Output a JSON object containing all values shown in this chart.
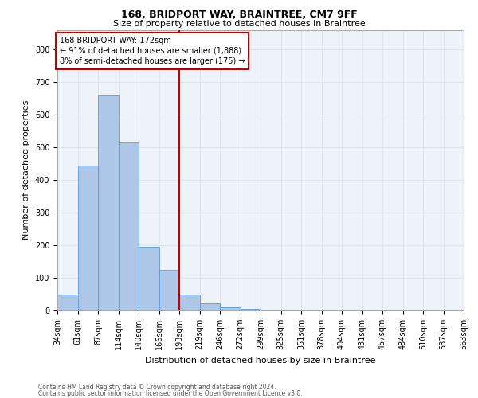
{
  "title1": "168, BRIDPORT WAY, BRAINTREE, CM7 9FF",
  "title2": "Size of property relative to detached houses in Braintree",
  "xlabel": "Distribution of detached houses by size in Braintree",
  "ylabel": "Number of detached properties",
  "footer1": "Contains HM Land Registry data © Crown copyright and database right 2024.",
  "footer2": "Contains public sector information licensed under the Open Government Licence v3.0.",
  "bins": [
    "34sqm",
    "61sqm",
    "87sqm",
    "114sqm",
    "140sqm",
    "166sqm",
    "193sqm",
    "219sqm",
    "246sqm",
    "272sqm",
    "299sqm",
    "325sqm",
    "351sqm",
    "378sqm",
    "404sqm",
    "431sqm",
    "457sqm",
    "484sqm",
    "510sqm",
    "537sqm",
    "563sqm"
  ],
  "bar_values": [
    50,
    445,
    660,
    515,
    195,
    125,
    50,
    22,
    10,
    5,
    0,
    0,
    0,
    0,
    0,
    0,
    0,
    0,
    0,
    0
  ],
  "bar_color": "#aec6e8",
  "bar_edge_color": "#5b9bd5",
  "grid_color": "#dce6f1",
  "vline_x": 6,
  "vline_color": "#c00000",
  "annotation_text": "168 BRIDPORT WAY: 172sqm\n← 91% of detached houses are smaller (1,888)\n8% of semi-detached houses are larger (175) →",
  "annotation_box_color": "#c00000",
  "ylim": [
    0,
    860
  ],
  "yticks": [
    0,
    100,
    200,
    300,
    400,
    500,
    600,
    700,
    800
  ],
  "bg_color": "#eef3fa",
  "title1_fontsize": 9,
  "title2_fontsize": 8,
  "ylabel_fontsize": 8,
  "xlabel_fontsize": 8,
  "tick_fontsize": 7,
  "ann_fontsize": 7,
  "footer_fontsize": 5.5
}
